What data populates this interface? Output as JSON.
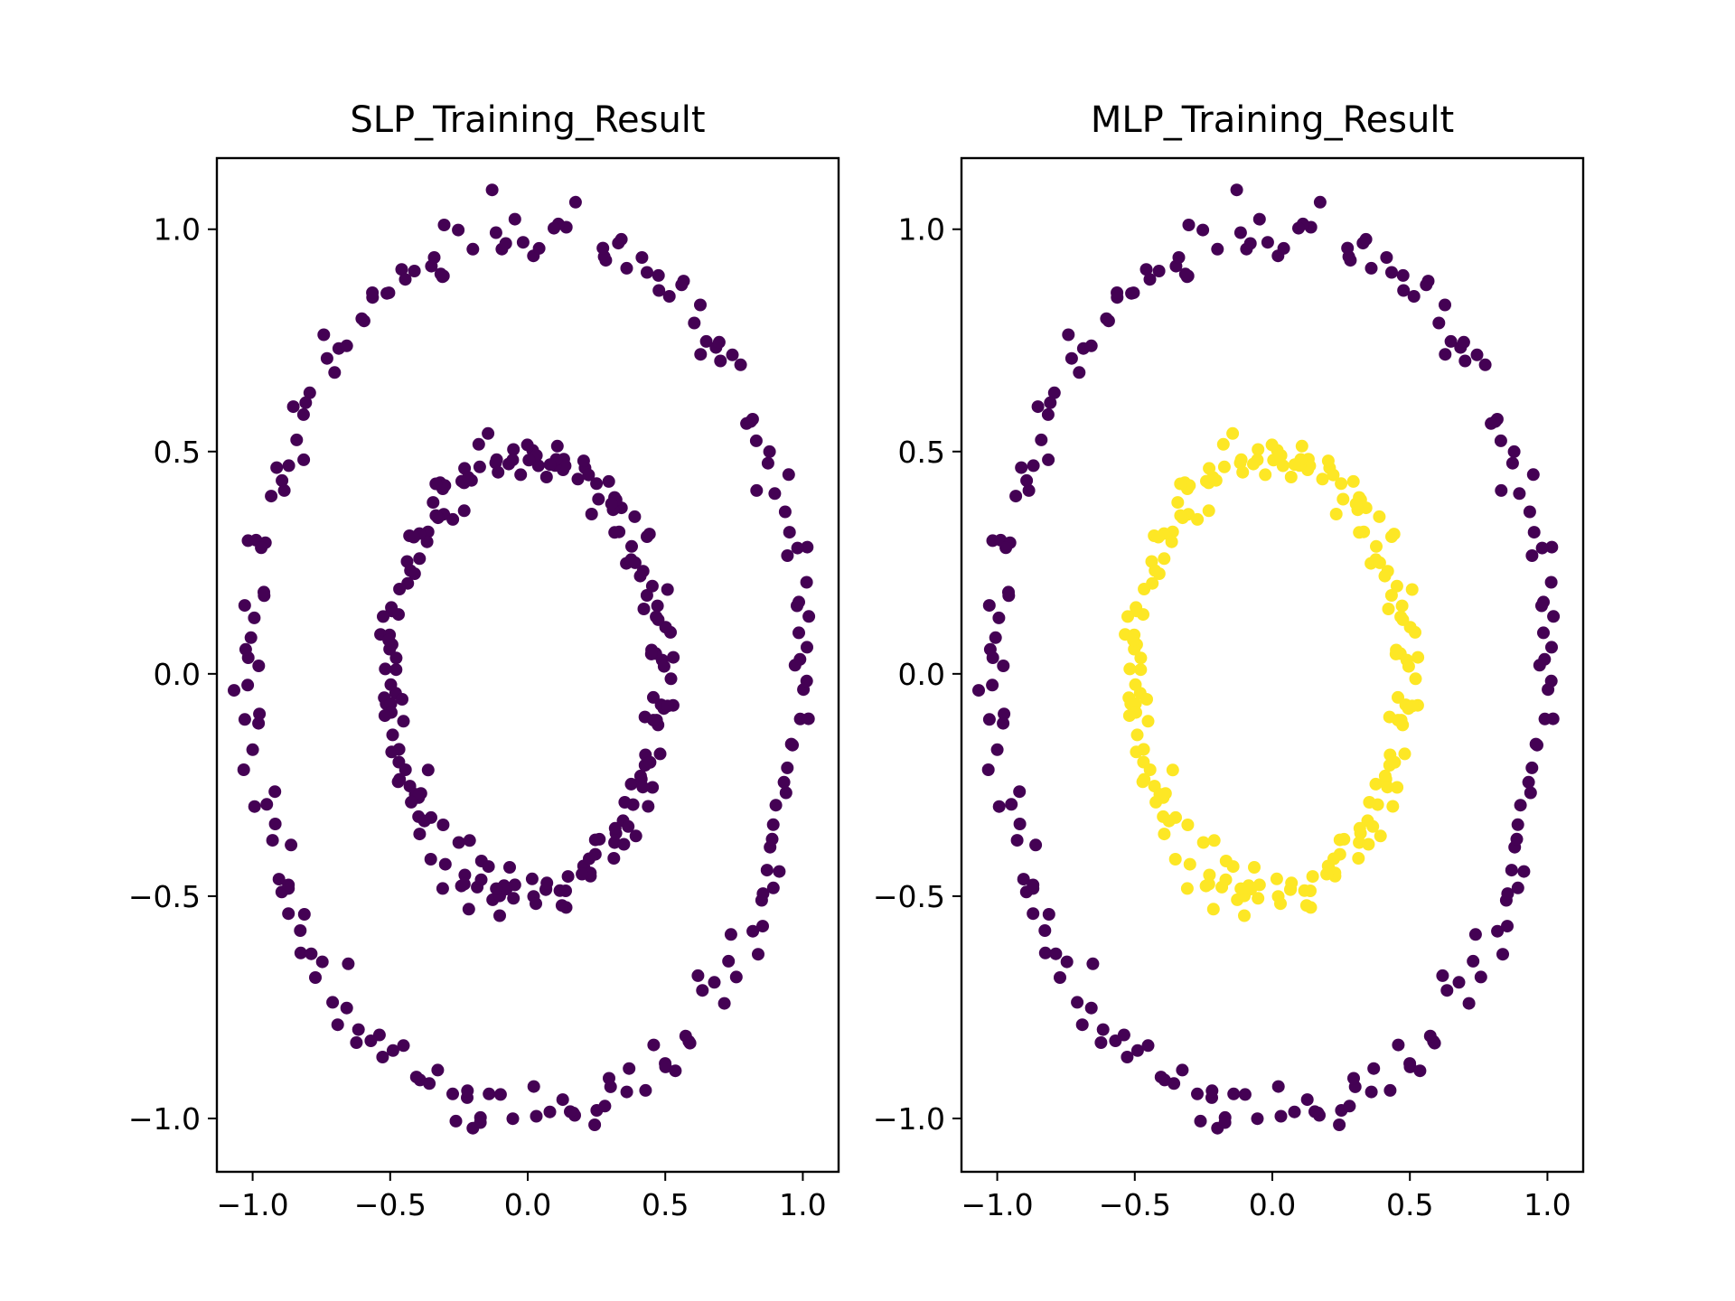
{
  "colors": {
    "outer_class": "#440154",
    "inner_class_slp": "#440154",
    "inner_class_mlp": "#fde725",
    "axes": "#000000",
    "background": "#ffffff"
  },
  "chart_data": [
    {
      "type": "scatter",
      "title": "SLP_Training_Result",
      "xlabel": "",
      "ylabel": "",
      "xlim": [
        -1.13,
        1.13
      ],
      "ylim": [
        -1.12,
        1.16
      ],
      "xticks": [
        -1.0,
        -0.5,
        0.0,
        0.5,
        1.0
      ],
      "xtick_labels": [
        "−1.0",
        "−0.5",
        "0.0",
        "0.5",
        "1.0"
      ],
      "yticks": [
        -1.0,
        -0.5,
        0.0,
        0.5,
        1.0
      ],
      "ytick_labels": [
        "−1.0",
        "−0.5",
        "0.0",
        "0.5",
        "1.0"
      ],
      "grid": false,
      "legend": false,
      "series": [
        {
          "ring": "outer",
          "radius": 1.0,
          "points": 200,
          "noise": 0.03,
          "color": "#440154"
        },
        {
          "ring": "inner",
          "radius": 0.5,
          "points": 200,
          "noise": 0.03,
          "color": "#440154"
        }
      ]
    },
    {
      "type": "scatter",
      "title": "MLP_Training_Result",
      "xlabel": "",
      "ylabel": "",
      "xlim": [
        -1.13,
        1.13
      ],
      "ylim": [
        -1.12,
        1.16
      ],
      "xticks": [
        -1.0,
        -0.5,
        0.0,
        0.5,
        1.0
      ],
      "xtick_labels": [
        "−1.0",
        "−0.5",
        "0.0",
        "0.5",
        "1.0"
      ],
      "yticks": [
        -1.0,
        -0.5,
        0.0,
        0.5,
        1.0
      ],
      "ytick_labels": [
        "−1.0",
        "−0.5",
        "0.0",
        "0.5",
        "1.0"
      ],
      "grid": false,
      "legend": false,
      "series": [
        {
          "ring": "outer",
          "radius": 1.0,
          "points": 200,
          "noise": 0.03,
          "color": "#440154"
        },
        {
          "ring": "inner",
          "radius": 0.5,
          "points": 200,
          "noise": 0.03,
          "color": "#fde725"
        }
      ]
    }
  ]
}
